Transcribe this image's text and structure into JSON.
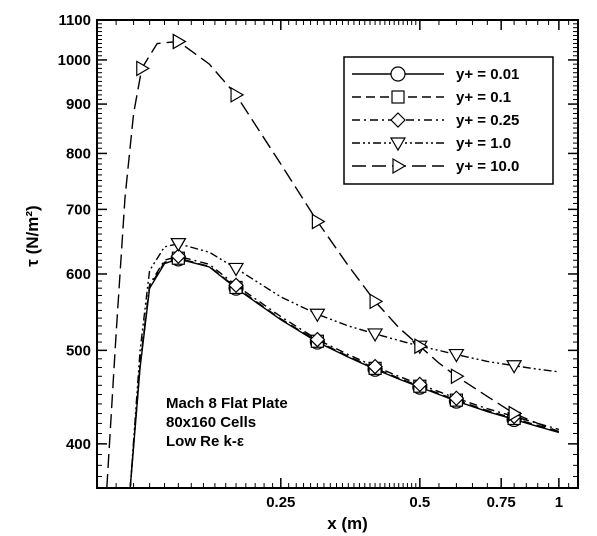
{
  "chart_data": {
    "type": "line",
    "title": "",
    "xlabel": "x (m)",
    "ylabel": "τ (N/m²)",
    "xscale": "log",
    "yscale": "log",
    "xlim": [
      0.1,
      1.1
    ],
    "ylim": [
      360,
      1100
    ],
    "x_ticks": [
      {
        "value": 0.25,
        "label": "0.25"
      },
      {
        "value": 0.5,
        "label": "0.5"
      },
      {
        "value": 0.75,
        "label": "0.75"
      },
      {
        "value": 1.0,
        "label": "1"
      }
    ],
    "y_ticks": [
      {
        "value": 400,
        "label": "400"
      },
      {
        "value": 500,
        "label": "500"
      },
      {
        "value": 600,
        "label": "600"
      },
      {
        "value": 700,
        "label": "700"
      },
      {
        "value": 800,
        "label": "800"
      },
      {
        "value": 900,
        "label": "900"
      },
      {
        "value": 1000,
        "label": "1000"
      },
      {
        "value": 1100,
        "label": "1100"
      }
    ],
    "grid": false,
    "legend_position": "top-right",
    "annotation": [
      "Mach 8 Flat Plate",
      "80x160 Cells",
      "Low Re k-ε"
    ],
    "series": [
      {
        "name": "y+ = 0.01",
        "marker": "circle",
        "dash": "solid",
        "x": [
          0.118,
          0.124,
          0.13,
          0.14,
          0.15,
          0.175,
          0.2,
          0.25,
          0.3,
          0.35,
          0.4,
          0.45,
          0.5,
          0.55,
          0.6,
          0.7,
          0.8,
          0.9,
          1.0
        ],
        "y": [
          360,
          480,
          580,
          615,
          622,
          610,
          580,
          538,
          510,
          492,
          478,
          467,
          458,
          450,
          443,
          432,
          424,
          417,
          411
        ]
      },
      {
        "name": "y+ = 0.1",
        "marker": "square",
        "dash": "dashed",
        "x": [
          0.118,
          0.124,
          0.13,
          0.14,
          0.15,
          0.175,
          0.2,
          0.25,
          0.3,
          0.35,
          0.4,
          0.45,
          0.5,
          0.55,
          0.6,
          0.7,
          0.8,
          0.9,
          1.0
        ],
        "y": [
          360,
          482,
          582,
          617,
          623,
          611,
          581,
          539,
          511,
          493,
          479,
          468,
          459,
          451,
          444,
          433,
          425,
          418,
          412
        ]
      },
      {
        "name": "y+ = 0.25",
        "marker": "diamond",
        "dash": "dashdot",
        "x": [
          0.118,
          0.124,
          0.13,
          0.14,
          0.15,
          0.175,
          0.2,
          0.25,
          0.3,
          0.35,
          0.4,
          0.45,
          0.5,
          0.55,
          0.6,
          0.7,
          0.8,
          0.9,
          1.0
        ],
        "y": [
          360,
          485,
          585,
          620,
          626,
          614,
          584,
          542,
          513,
          495,
          481,
          470,
          461,
          453,
          446,
          435,
          427,
          420,
          414
        ]
      },
      {
        "name": "y+ = 1.0",
        "marker": "triangle-down",
        "dash": "dashdotdot",
        "x": [
          0.118,
          0.124,
          0.13,
          0.14,
          0.15,
          0.175,
          0.2,
          0.25,
          0.3,
          0.35,
          0.4,
          0.45,
          0.5,
          0.55,
          0.6,
          0.7,
          0.8,
          0.9,
          1.0
        ],
        "y": [
          360,
          500,
          605,
          640,
          645,
          632,
          608,
          568,
          545,
          530,
          520,
          512,
          505,
          500,
          495,
          487,
          482,
          478,
          475
        ]
      },
      {
        "name": "y+ = 10.0",
        "marker": "triangle-right",
        "dash": "longdash",
        "x": [
          0.105,
          0.11,
          0.115,
          0.12,
          0.125,
          0.135,
          0.15,
          0.175,
          0.2,
          0.25,
          0.3,
          0.35,
          0.4,
          0.45,
          0.5,
          0.55,
          0.6,
          0.7,
          0.8,
          0.9,
          1.0
        ],
        "y": [
          360,
          520,
          720,
          880,
          980,
          1040,
          1045,
          990,
          920,
          780,
          680,
          612,
          562,
          528,
          505,
          485,
          470,
          448,
          430,
          420,
          412
        ]
      }
    ]
  }
}
